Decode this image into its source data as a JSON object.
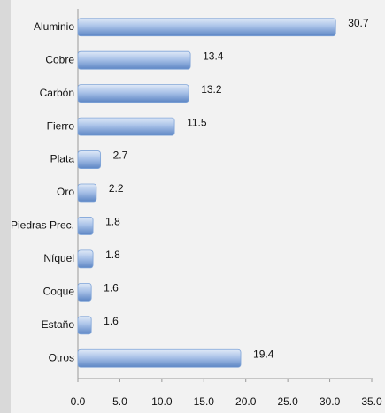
{
  "chart_data": {
    "type": "bar",
    "orientation": "horizontal",
    "categories": [
      "Aluminio",
      "Cobre",
      "Carbón",
      "Fierro",
      "Plata",
      "Oro",
      "Piedras Prec.",
      "Níquel",
      "Coque",
      "Estaño",
      "Otros"
    ],
    "values": [
      30.7,
      13.4,
      13.2,
      11.5,
      2.7,
      2.2,
      1.8,
      1.8,
      1.6,
      1.6,
      19.4
    ],
    "color": "#7fa4d8",
    "xlim": [
      0,
      35
    ],
    "xticks": [
      {
        "value": 0,
        "label": "0.0"
      },
      {
        "value": 5,
        "label": "5.0"
      },
      {
        "value": 10,
        "label": "10.0"
      },
      {
        "value": 15,
        "label": "15.0"
      },
      {
        "value": 20,
        "label": "20.0"
      },
      {
        "value": 25,
        "label": "25.0"
      },
      {
        "value": 30,
        "label": "30.0"
      },
      {
        "value": 35,
        "label": "35.0"
      }
    ],
    "grid": false
  }
}
